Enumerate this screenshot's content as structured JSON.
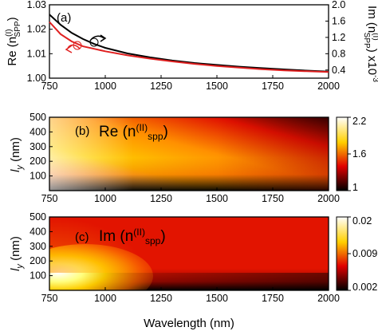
{
  "chart_data": [
    {
      "type": "line",
      "panel_label": "(a)",
      "xlim": [
        750,
        2000
      ],
      "x_ticks": [
        "750",
        "1000",
        "1250",
        "1500",
        "1750",
        "2000"
      ],
      "ylabel_left": "Re (n(I)SPP)",
      "ylabel_right": "Im (n(I)SPP) x10-3",
      "ylim_left": [
        1.0,
        1.03
      ],
      "y_ticks_left": [
        "1.00",
        "1.01",
        "1.02",
        "1.03"
      ],
      "ylim_right": [
        0.2,
        2.0
      ],
      "y_ticks_right": [
        "0.4",
        "0.8",
        "1.2",
        "1.6",
        "2.0"
      ],
      "series": [
        {
          "axis": "left",
          "color": "#000000",
          "x": [
            750,
            800,
            850,
            900,
            950,
            1000,
            1100,
            1200,
            1300,
            1400,
            1500,
            1600,
            1700,
            1800,
            1900,
            2000
          ],
          "y": [
            1.026,
            1.0218,
            1.0185,
            1.016,
            1.014,
            1.0124,
            1.0101,
            1.0085,
            1.0072,
            1.0062,
            1.0054,
            1.0047,
            1.0041,
            1.0036,
            1.0031,
            1.0027
          ]
        },
        {
          "axis": "right",
          "color": "#e02020",
          "x": [
            750,
            800,
            850,
            900,
            950,
            1000,
            1100,
            1200,
            1300,
            1400,
            1500,
            1600,
            1700,
            1800,
            1900,
            2000
          ],
          "y": [
            1.58,
            1.28,
            1.1,
            0.98,
            0.92,
            0.86,
            0.76,
            0.68,
            0.61,
            0.55,
            0.5,
            0.46,
            0.42,
            0.39,
            0.37,
            0.35
          ]
        }
      ]
    },
    {
      "type": "heatmap",
      "panel_label": "(b)",
      "title": "Re (n(II)spp)",
      "xlim": [
        750,
        2000
      ],
      "x_ticks": [
        "750",
        "1000",
        "1250",
        "1500",
        "1750",
        "2000"
      ],
      "ylabel": "ly (nm)",
      "ylim": [
        0,
        500
      ],
      "y_ticks": [
        "100",
        "200",
        "300",
        "400",
        "500"
      ],
      "colorbar_ticks": [
        "1",
        "1.6",
        "2.2"
      ],
      "colorbar_range": [
        1.0,
        2.2
      ],
      "colormap": "hot"
    },
    {
      "type": "heatmap",
      "panel_label": "(c)",
      "title": "Im (n(II)spp)",
      "xlim": [
        750,
        2000
      ],
      "x_ticks": [
        "750",
        "1000",
        "1250",
        "1500",
        "1750",
        "2000"
      ],
      "xlabel": "Wavelength (nm)",
      "ylabel": "ly (nm)",
      "ylim": [
        0,
        500
      ],
      "y_ticks": [
        "100",
        "200",
        "300",
        "400",
        "500"
      ],
      "colorbar_ticks": [
        "0.002",
        "0.009",
        "0.02"
      ],
      "colorbar_range": [
        0.002,
        0.02
      ],
      "colormap": "hot"
    }
  ],
  "text": {
    "a_ylabel_left_main": "Re (n",
    "a_ylabel_left_sup": "(I)",
    "a_ylabel_left_sub": "SPP",
    "a_ylabel_left_end": ")",
    "a_ylabel_right_main": "Im (n",
    "a_ylabel_right_sup": "(I)",
    "a_ylabel_right_sub": "SPP",
    "a_ylabel_right_end": ") x10",
    "a_ylabel_right_exp": "-3",
    "b_title_main": "Re (n",
    "b_title_sup": "(II)",
    "b_title_sub": "spp",
    "b_title_end": ")",
    "c_title_main": "Im (n",
    "c_title_sup": "(II)",
    "c_title_sub": "spp",
    "c_title_end": ")",
    "ly_main": "l",
    "ly_sub": "y",
    "ly_unit": " (nm)",
    "xlabel": "Wavelength (nm)"
  }
}
